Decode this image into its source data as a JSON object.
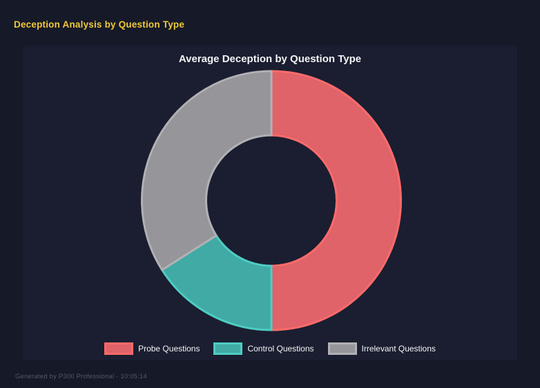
{
  "page": {
    "title": "Deception Analysis by Question Type",
    "footer": "Generated by P300 Professional - 10:05:14"
  },
  "theme": {
    "page_bg": "#161927",
    "panel_bg": "#1a1e30",
    "page_title_color": "#efc93c",
    "chart_title_color": "#f2f3f5",
    "legend_text_color": "#f4f4f6",
    "footer_color": "#545a68"
  },
  "chart_data": {
    "type": "pie",
    "subtype": "doughnut",
    "title": "Average Deception by Question Type",
    "categories": [
      "Probe Questions",
      "Control Questions",
      "Irrelevant Questions"
    ],
    "values": [
      50,
      16,
      34
    ],
    "values_unit": "percent of ring (estimated from arc angles)",
    "start_angle_deg": 0,
    "direction": "clockwise",
    "cutout_percent": 50,
    "legend_position": "bottom",
    "data_labels": false,
    "colors": [
      {
        "name": "red",
        "fill": "#df6369",
        "border": "#ff6b6b"
      },
      {
        "name": "teal",
        "fill": "#41aaa4",
        "border": "#4ecdc4"
      },
      {
        "name": "gray",
        "fill": "#96969a",
        "border": "#b1b1b5"
      }
    ]
  }
}
